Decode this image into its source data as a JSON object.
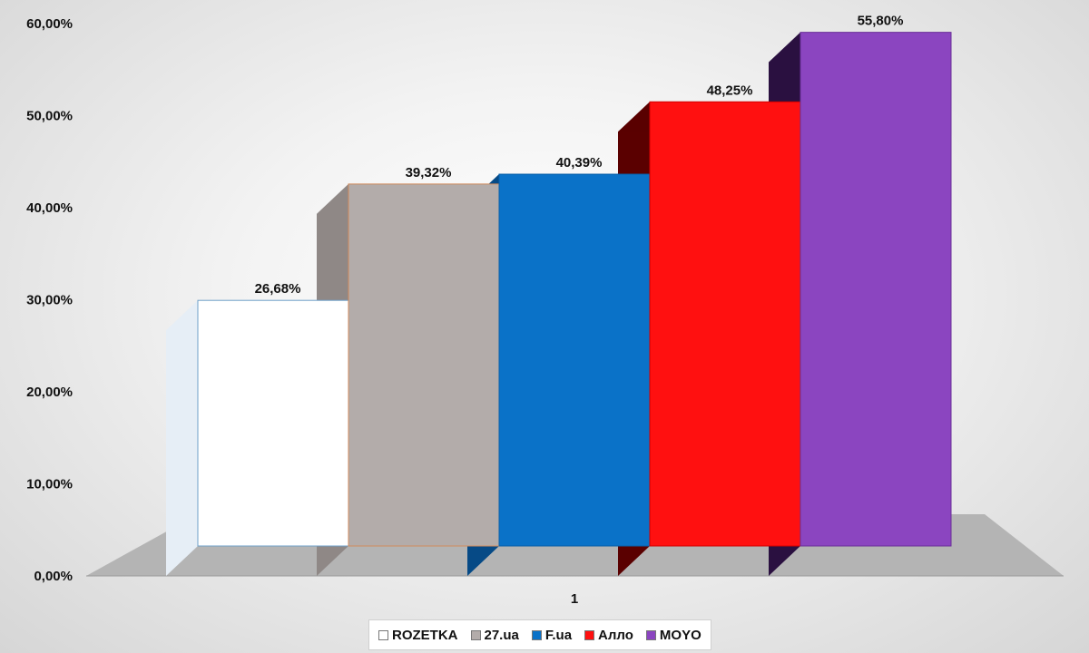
{
  "chart_data": {
    "type": "bar",
    "style": "3d-clustered-column",
    "categories": [
      "1"
    ],
    "series": [
      {
        "name": "ROZETKA",
        "values": [
          26.68
        ],
        "label": "26,68%",
        "color": "#ffffff",
        "edge": "#6fa0c8",
        "side": "#e6eef6"
      },
      {
        "name": "27.ua",
        "values": [
          39.32
        ],
        "label": "39,32%",
        "color": "#b3acaa",
        "edge": "#d08a5c",
        "side": "#8f8886"
      },
      {
        "name": "F.ua",
        "values": [
          40.39
        ],
        "label": "40,39%",
        "color": "#0a72c8",
        "edge": "#0a5fa8",
        "side": "#064a86"
      },
      {
        "name": "Алло",
        "values": [
          48.25
        ],
        "label": "48,25%",
        "color": "#ff1010",
        "edge": "#d00000",
        "side": "#5a0000"
      },
      {
        "name": "MOYO",
        "values": [
          55.8
        ],
        "label": "55,80%",
        "color": "#8b45c0",
        "edge": "#6a2e98",
        "side": "#2a1040"
      }
    ],
    "y_ticks": [
      "0,00%",
      "10,00%",
      "20,00%",
      "30,00%",
      "40,00%",
      "50,00%",
      "60,00%"
    ],
    "ylim": [
      0,
      60
    ],
    "grid": false,
    "legend": "bottom",
    "floor_color": "#b4b4b4"
  }
}
